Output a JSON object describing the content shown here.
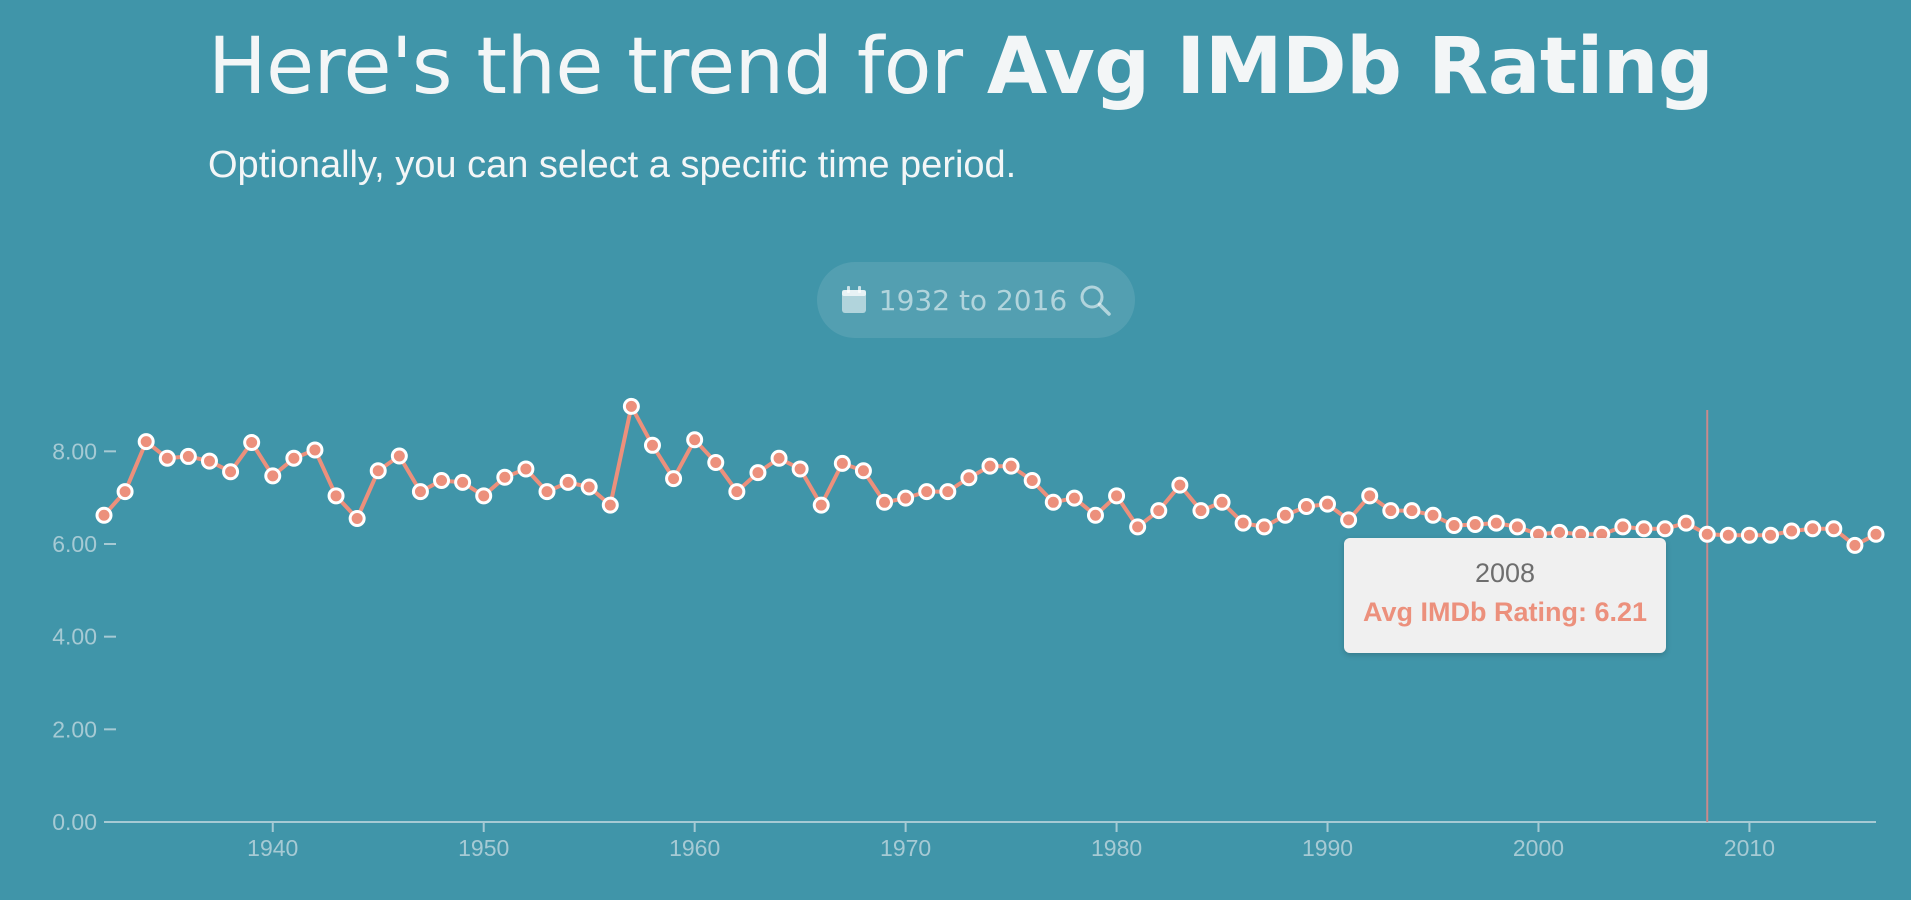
{
  "header": {
    "title_prefix": "Here's the trend for",
    "title_metric": "Avg IMDb Rating",
    "subtitle": "Optionally, you can select a specific time period."
  },
  "date_filter": {
    "label": "1932 to 2016",
    "calendar_icon": "calendar-icon",
    "search_icon": "search-icon"
  },
  "tooltip": {
    "year": "2008",
    "value_text": "Avg IMDb Rating: 6.21"
  },
  "colors": {
    "background": "#4095a9",
    "line": "#ec907c",
    "axis": "#a6cad4",
    "hover_line": "#c98a8c"
  },
  "chart_data": {
    "type": "line",
    "title": "Avg IMDb Rating",
    "xlabel": "",
    "ylabel": "",
    "xlim": [
      1932,
      2016
    ],
    "ylim": [
      0,
      9
    ],
    "y_ticks": [
      0,
      2,
      4,
      6,
      8
    ],
    "y_tick_labels": [
      "0.00",
      "2.00",
      "4.00",
      "6.00",
      "8.00"
    ],
    "x_ticks": [
      1940,
      1950,
      1960,
      1970,
      1980,
      1990,
      2000,
      2010
    ],
    "x_tick_labels": [
      "1940",
      "1950",
      "1960",
      "1970",
      "1980",
      "1990",
      "2000",
      "2010"
    ],
    "highlight_year": 2008,
    "series": [
      {
        "name": "Avg IMDb Rating",
        "x": [
          1932,
          1933,
          1934,
          1935,
          1936,
          1937,
          1938,
          1939,
          1940,
          1941,
          1942,
          1943,
          1944,
          1945,
          1946,
          1947,
          1948,
          1949,
          1950,
          1951,
          1952,
          1953,
          1954,
          1955,
          1956,
          1957,
          1958,
          1959,
          1960,
          1961,
          1962,
          1963,
          1964,
          1965,
          1966,
          1967,
          1968,
          1969,
          1970,
          1971,
          1972,
          1973,
          1974,
          1975,
          1976,
          1977,
          1978,
          1979,
          1980,
          1981,
          1982,
          1983,
          1984,
          1985,
          1986,
          1987,
          1988,
          1989,
          1990,
          1991,
          1992,
          1993,
          1994,
          1995,
          1996,
          1997,
          1998,
          1999,
          2000,
          2001,
          2002,
          2003,
          2004,
          2005,
          2006,
          2007,
          2008,
          2009,
          2010,
          2011,
          2012,
          2013,
          2014,
          2015,
          2016
        ],
        "values": [
          6.62,
          7.13,
          8.21,
          7.85,
          7.89,
          7.79,
          7.56,
          8.19,
          7.47,
          7.85,
          8.03,
          7.04,
          6.55,
          7.58,
          7.9,
          7.13,
          7.37,
          7.33,
          7.04,
          7.44,
          7.62,
          7.13,
          7.33,
          7.23,
          6.84,
          8.97,
          8.13,
          7.41,
          8.25,
          7.76,
          7.13,
          7.54,
          7.85,
          7.62,
          6.84,
          7.74,
          7.58,
          6.9,
          6.99,
          7.13,
          7.13,
          7.43,
          7.68,
          7.68,
          7.37,
          6.9,
          6.99,
          6.62,
          7.04,
          6.37,
          6.72,
          7.27,
          6.72,
          6.9,
          6.45,
          6.37,
          6.62,
          6.81,
          6.86,
          6.52,
          7.04,
          6.72,
          6.72,
          6.62,
          6.4,
          6.42,
          6.45,
          6.37,
          6.21,
          6.25,
          6.21,
          6.21,
          6.37,
          6.33,
          6.33,
          6.45,
          6.21,
          6.19,
          6.19,
          6.19,
          6.28,
          6.33,
          6.33,
          5.97,
          6.21
        ]
      }
    ]
  }
}
